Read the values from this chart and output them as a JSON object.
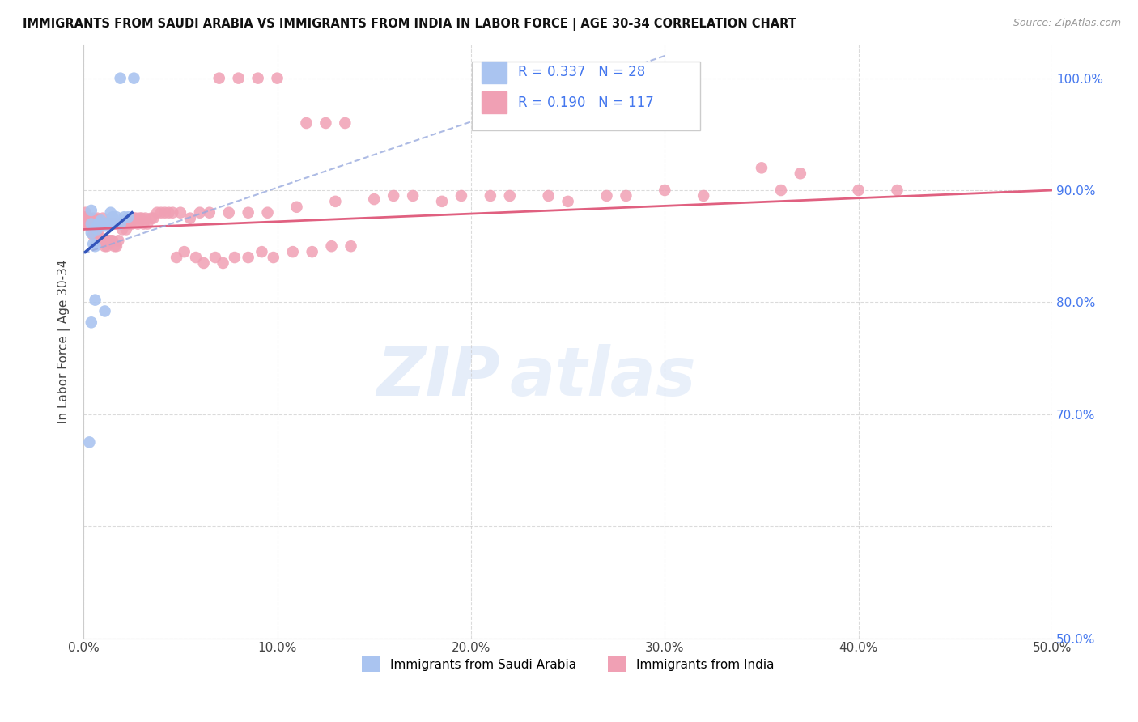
{
  "title": "IMMIGRANTS FROM SAUDI ARABIA VS IMMIGRANTS FROM INDIA IN LABOR FORCE | AGE 30-34 CORRELATION CHART",
  "source": "Source: ZipAtlas.com",
  "ylabel": "In Labor Force | Age 30-34",
  "xlim": [
    0.0,
    0.5
  ],
  "ylim": [
    0.5,
    1.03
  ],
  "ytick_labels_right": [
    "100.0%",
    "90.0%",
    "80.0%",
    "70.0%",
    "50.0%"
  ],
  "ytick_values_right": [
    1.0,
    0.9,
    0.8,
    0.7,
    0.5
  ],
  "xtick_labels": [
    "0.0%",
    "10.0%",
    "20.0%",
    "30.0%",
    "40.0%",
    "50.0%"
  ],
  "xtick_values": [
    0.0,
    0.1,
    0.2,
    0.3,
    0.4,
    0.5
  ],
  "saudi_color": "#aac4f0",
  "india_color": "#f0a0b4",
  "saudi_R": 0.337,
  "saudi_N": 28,
  "india_R": 0.19,
  "india_N": 117,
  "legend_label_saudi": "Immigrants from Saudi Arabia",
  "legend_label_india": "Immigrants from India",
  "saudi_line_solid_color": "#3355bb",
  "saudi_line_dashed_color": "#99aade",
  "india_line_color": "#e06080",
  "right_axis_color": "#4477ee",
  "title_color": "#111111",
  "source_color": "#999999",
  "grid_color": "#cccccc",
  "watermark_zip_color": "#d0dff5",
  "watermark_atlas_color": "#d0dff5",
  "saudi_x": [
    0.019,
    0.026,
    0.004,
    0.004,
    0.004,
    0.005,
    0.006,
    0.007,
    0.007,
    0.008,
    0.008,
    0.009,
    0.01,
    0.011,
    0.012,
    0.013,
    0.014,
    0.015,
    0.015,
    0.016,
    0.017,
    0.019,
    0.021,
    0.023,
    0.004,
    0.006,
    0.011,
    0.003
  ],
  "saudi_y": [
    1.0,
    1.0,
    0.882,
    0.87,
    0.862,
    0.852,
    0.85,
    0.865,
    0.868,
    0.87,
    0.871,
    0.873,
    0.87,
    0.868,
    0.87,
    0.871,
    0.88,
    0.876,
    0.872,
    0.872,
    0.876,
    0.87,
    0.876,
    0.876,
    0.782,
    0.802,
    0.792,
    0.675
  ],
  "india_x": [
    0.001,
    0.001,
    0.001,
    0.002,
    0.002,
    0.002,
    0.003,
    0.003,
    0.003,
    0.003,
    0.004,
    0.004,
    0.004,
    0.004,
    0.005,
    0.005,
    0.005,
    0.006,
    0.006,
    0.007,
    0.007,
    0.007,
    0.008,
    0.008,
    0.009,
    0.009,
    0.01,
    0.01,
    0.01,
    0.011,
    0.011,
    0.012,
    0.012,
    0.013,
    0.013,
    0.014,
    0.014,
    0.015,
    0.015,
    0.016,
    0.016,
    0.017,
    0.017,
    0.018,
    0.019,
    0.019,
    0.02,
    0.02,
    0.021,
    0.022,
    0.022,
    0.023,
    0.024,
    0.025,
    0.026,
    0.027,
    0.028,
    0.029,
    0.03,
    0.031,
    0.032,
    0.033,
    0.035,
    0.036,
    0.038,
    0.04,
    0.042,
    0.044,
    0.046,
    0.05,
    0.055,
    0.06,
    0.065,
    0.075,
    0.085,
    0.095,
    0.11,
    0.13,
    0.15,
    0.17,
    0.195,
    0.22,
    0.25,
    0.28,
    0.32,
    0.36,
    0.4,
    0.42,
    0.35,
    0.37,
    0.115,
    0.125,
    0.135,
    0.07,
    0.08,
    0.09,
    0.1,
    0.048,
    0.052,
    0.058,
    0.062,
    0.068,
    0.072,
    0.078,
    0.085,
    0.092,
    0.098,
    0.108,
    0.118,
    0.128,
    0.138,
    0.16,
    0.185,
    0.21,
    0.24,
    0.27,
    0.3
  ],
  "india_y": [
    0.872,
    0.876,
    0.88,
    0.87,
    0.875,
    0.87,
    0.87,
    0.87,
    0.875,
    0.87,
    0.87,
    0.87,
    0.87,
    0.87,
    0.86,
    0.87,
    0.875,
    0.86,
    0.87,
    0.86,
    0.865,
    0.875,
    0.86,
    0.87,
    0.855,
    0.87,
    0.855,
    0.87,
    0.875,
    0.85,
    0.87,
    0.85,
    0.87,
    0.855,
    0.87,
    0.855,
    0.87,
    0.855,
    0.87,
    0.85,
    0.87,
    0.85,
    0.87,
    0.855,
    0.87,
    0.87,
    0.865,
    0.87,
    0.87,
    0.865,
    0.87,
    0.87,
    0.87,
    0.87,
    0.875,
    0.875,
    0.87,
    0.875,
    0.875,
    0.87,
    0.875,
    0.87,
    0.875,
    0.875,
    0.88,
    0.88,
    0.88,
    0.88,
    0.88,
    0.88,
    0.875,
    0.88,
    0.88,
    0.88,
    0.88,
    0.88,
    0.885,
    0.89,
    0.892,
    0.895,
    0.895,
    0.895,
    0.89,
    0.895,
    0.895,
    0.9,
    0.9,
    0.9,
    0.92,
    0.915,
    0.96,
    0.96,
    0.96,
    1.0,
    1.0,
    1.0,
    1.0,
    0.84,
    0.845,
    0.84,
    0.835,
    0.84,
    0.835,
    0.84,
    0.84,
    0.845,
    0.84,
    0.845,
    0.845,
    0.85,
    0.85,
    0.895,
    0.89,
    0.895,
    0.895,
    0.895,
    0.9
  ]
}
